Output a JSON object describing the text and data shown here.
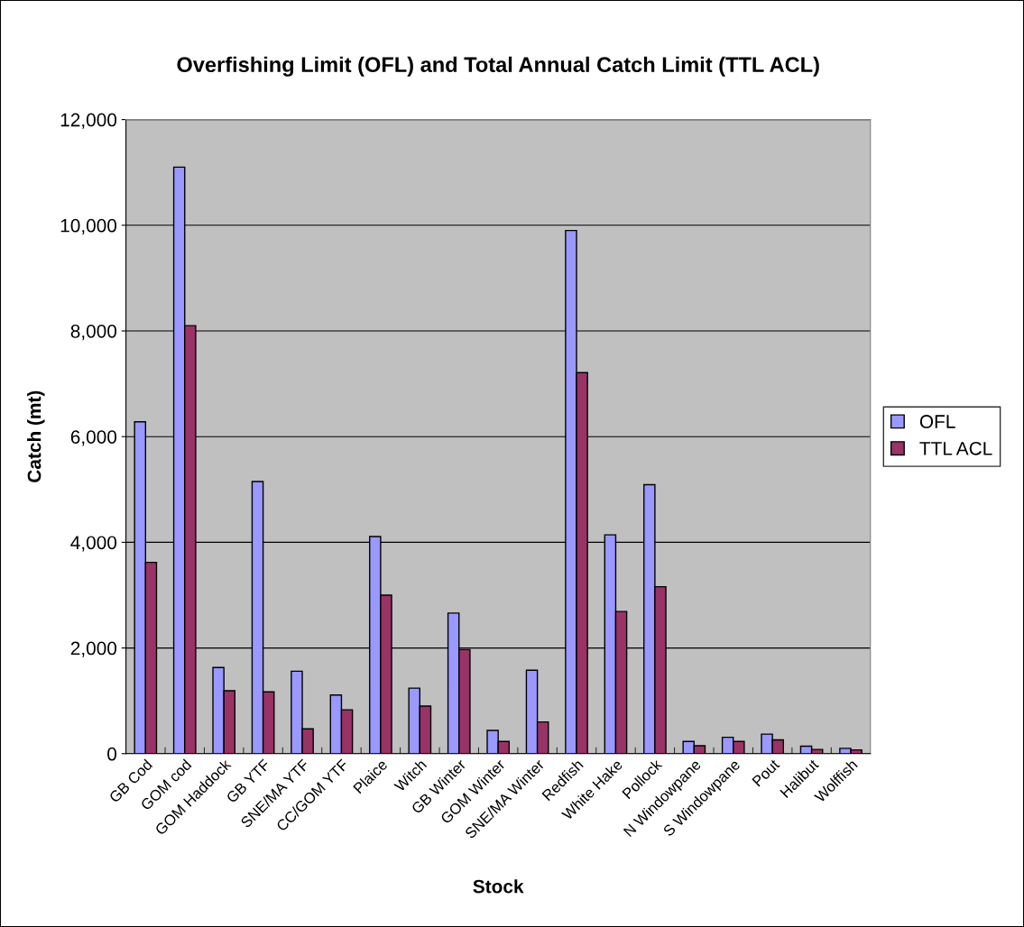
{
  "chart_data": {
    "type": "bar",
    "title": "Overfishing Limit (OFL) and Total Annual Catch Limit (TTL ACL)",
    "xlabel": "Stock",
    "ylabel": "Catch (mt)",
    "categories": [
      "GB Cod",
      "GOM cod",
      "GOM Haddock",
      "GB YTF",
      "SNE/MA YTF",
      "CC/GOM YTF",
      "Plaice",
      "Witch",
      "GB Winter",
      "GOM Winter",
      "SNE/MA Winter",
      "Redfish",
      "White Hake",
      "Pollock",
      "N Windowpane",
      "S Windowpane",
      "Pout",
      "Halibut",
      "Wolffish"
    ],
    "series": [
      {
        "name": "OFL",
        "color": "#9999ff",
        "values": [
          6280,
          11100,
          1630,
          5150,
          1560,
          1110,
          4110,
          1240,
          2660,
          440,
          1580,
          9900,
          4140,
          5090,
          230,
          310,
          370,
          140,
          100
        ]
      },
      {
        "name": "TTL ACL",
        "color": "#993366",
        "values": [
          3620,
          8100,
          1190,
          1170,
          470,
          830,
          3000,
          900,
          1970,
          230,
          600,
          7210,
          2690,
          3160,
          150,
          230,
          260,
          80,
          70
        ]
      }
    ],
    "ylim": [
      0,
      12000
    ],
    "yticks": [
      {
        "value": 0,
        "label": "0"
      },
      {
        "value": 2000,
        "label": "2,000"
      },
      {
        "value": 4000,
        "label": "4,000"
      },
      {
        "value": 6000,
        "label": "6,000"
      },
      {
        "value": 8000,
        "label": "8,000"
      },
      {
        "value": 10000,
        "label": "10,000"
      },
      {
        "value": 12000,
        "label": "12,000"
      }
    ],
    "grid": "y",
    "legend": "right"
  }
}
